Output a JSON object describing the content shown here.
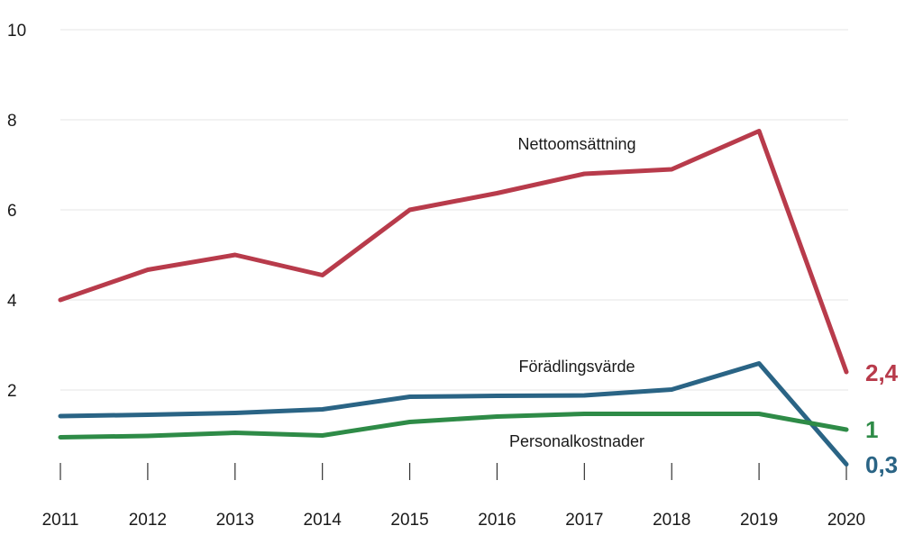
{
  "chart_data": {
    "type": "line",
    "title": "",
    "xlabel": "",
    "ylabel": "",
    "x": [
      "2011",
      "2012",
      "2013",
      "2014",
      "2015",
      "2016",
      "2017",
      "2018",
      "2019",
      "2020"
    ],
    "ylim": [
      0,
      10
    ],
    "y_ticks": [
      "2",
      "4",
      "6",
      "8",
      "10"
    ],
    "grid": true,
    "series": [
      {
        "name": "Nettoomsättning",
        "color": "#b83b4b",
        "end_label": "2,4",
        "values": [
          4.0,
          4.67,
          5.0,
          4.55,
          6.0,
          6.37,
          6.8,
          6.9,
          7.75,
          2.4
        ]
      },
      {
        "name": "Förädlingsvärde",
        "color": "#2a6485",
        "end_label": "0,3",
        "values": [
          1.42,
          1.45,
          1.49,
          1.57,
          1.85,
          1.87,
          1.88,
          2.01,
          2.59,
          0.35
        ]
      },
      {
        "name": "Personalkostnader",
        "color": "#2e8b47",
        "end_label": "1",
        "values": [
          0.95,
          0.98,
          1.05,
          0.99,
          1.29,
          1.41,
          1.47,
          1.47,
          1.47,
          1.12
        ]
      }
    ]
  }
}
